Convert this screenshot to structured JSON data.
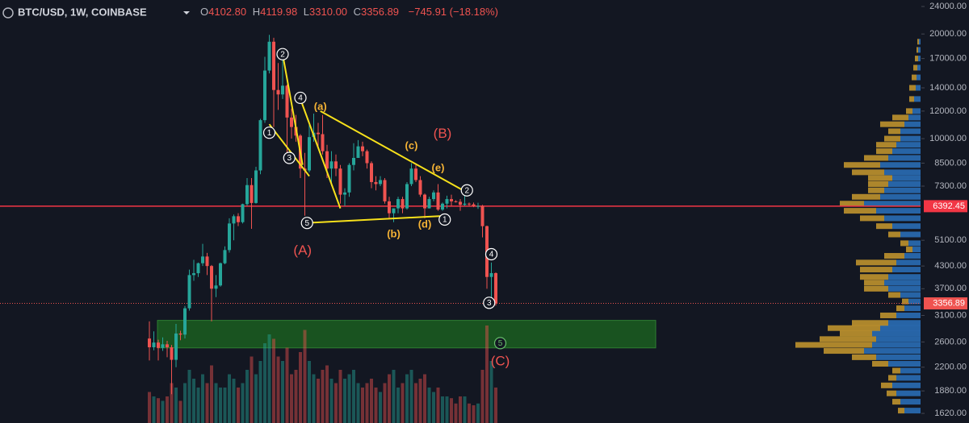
{
  "chart_data": {
    "type": "candlestick",
    "title": "BTC/USD, 1W, COINBASE",
    "ohlc": [
      {
        "label": "O",
        "value": "4102.80"
      },
      {
        "label": "H",
        "value": "4119.98"
      },
      {
        "label": "L",
        "value": "3310.00"
      },
      {
        "label": "C",
        "value": "3356.89"
      }
    ],
    "change": "−745.91 (−18.18%)",
    "log_scale": true,
    "grid": false,
    "up_color": "#26a69a",
    "down_color": "#ef5350",
    "ylim": [
      1520,
      25050
    ],
    "yticks": [
      {
        "value": 1620,
        "label": "1620.00"
      },
      {
        "value": 1880,
        "label": "1880.00"
      },
      {
        "value": 2200,
        "label": "2200.00"
      },
      {
        "value": 2600,
        "label": "2600.00"
      },
      {
        "value": 3100,
        "label": "3100.00"
      },
      {
        "value": 3700,
        "label": "3700.00"
      },
      {
        "value": 4300,
        "label": "4300.00"
      },
      {
        "value": 5100,
        "label": "5100.00"
      },
      {
        "value": 7300,
        "label": "7300.00"
      },
      {
        "value": 8500,
        "label": "8500.00"
      },
      {
        "value": 10000,
        "label": "10000.00"
      },
      {
        "value": 12000,
        "label": "12000.00"
      },
      {
        "value": 14000,
        "label": "14000.00"
      },
      {
        "value": 17000,
        "label": "17000.00"
      },
      {
        "value": 20000,
        "label": "20000.00"
      },
      {
        "value": 24000,
        "label": "24000.00"
      }
    ],
    "open": [
      2660,
      2510,
      2590,
      2500,
      2560,
      2510,
      2310,
      2750,
      2730,
      3250,
      4050,
      4100,
      4380,
      4580,
      4300,
      3700,
      3780,
      4380,
      4780,
      5700,
      5980,
      5750,
      6480,
      7350,
      6530,
      8100,
      11300,
      15700,
      19000,
      13800,
      13400,
      14200,
      11500,
      10800,
      10200,
      8200,
      8100,
      10100,
      10400,
      10300,
      9200,
      8200,
      8600,
      8200,
      6900,
      7000,
      8400,
      8800,
      9500,
      9200,
      8500,
      7500,
      7400,
      7600,
      6600,
      6100,
      6300,
      6700,
      6300,
      7400,
      8200,
      7600,
      6900,
      6300,
      6700,
      7000,
      6250,
      6500,
      6700,
      6600,
      6580,
      6450,
      6500,
      6470,
      6390,
      6400,
      5600,
      4000,
      4102.8
    ],
    "high": [
      2980,
      2790,
      2640,
      2680,
      2620,
      2550,
      2930,
      2800,
      3300,
      4200,
      4480,
      4400,
      4980,
      4690,
      4330,
      4050,
      4400,
      4900,
      5900,
      6050,
      6100,
      6500,
      7700,
      7700,
      8300,
      11400,
      17200,
      19890,
      19500,
      16500,
      17200,
      14300,
      12200,
      11700,
      10300,
      9100,
      11000,
      11800,
      11100,
      11700,
      9600,
      9200,
      9000,
      8400,
      7200,
      8500,
      9700,
      9900,
      9800,
      9300,
      8600,
      7800,
      7800,
      7700,
      6800,
      6300,
      6800,
      6800,
      7500,
      8500,
      8400,
      7800,
      6950,
      6800,
      7100,
      7400,
      6550,
      6850,
      6900,
      6650,
      6700,
      7000,
      6550,
      6550,
      6540,
      6450,
      5620,
      4400,
      4119.98
    ],
    "low": [
      2300,
      2460,
      2300,
      2450,
      2350,
      1840,
      2200,
      2630,
      2660,
      3200,
      3900,
      4000,
      4300,
      4050,
      2980,
      3500,
      3750,
      4350,
      4700,
      5100,
      5600,
      5700,
      6400,
      5500,
      6500,
      7900,
      11100,
      15400,
      10800,
      12100,
      13000,
      9000,
      10000,
      9800,
      7700,
      6000,
      8000,
      9800,
      9400,
      9000,
      7700,
      7300,
      7800,
      6500,
      6400,
      6800,
      8100,
      8800,
      8900,
      8200,
      7200,
      7100,
      7300,
      6500,
      5900,
      5750,
      6100,
      6100,
      6250,
      7300,
      7500,
      6800,
      5900,
      6300,
      6600,
      6200,
      6200,
      6300,
      6400,
      6550,
      6200,
      6400,
      6380,
      6350,
      6280,
      5200,
      3700,
      3500,
      3310
    ],
    "close": [
      2510,
      2590,
      2500,
      2560,
      2510,
      2310,
      2750,
      2730,
      3250,
      4050,
      4100,
      4380,
      4580,
      4300,
      3700,
      3780,
      4380,
      4780,
      5700,
      5980,
      5750,
      6480,
      7350,
      6530,
      8100,
      11300,
      15700,
      19000,
      13800,
      13400,
      14200,
      11500,
      10800,
      10200,
      8200,
      8100,
      10100,
      10400,
      10300,
      9200,
      8200,
      8600,
      8200,
      6900,
      7000,
      8400,
      8800,
      9500,
      9200,
      8500,
      7500,
      7400,
      7600,
      6600,
      6100,
      6300,
      6700,
      6300,
      7400,
      8200,
      7600,
      6900,
      6300,
      6700,
      7000,
      6250,
      6500,
      6700,
      6600,
      6580,
      6450,
      6500,
      6470,
      6390,
      6400,
      5600,
      4000,
      4102.8,
      3356.89
    ],
    "volume": [
      35,
      30,
      28,
      25,
      30,
      45,
      40,
      25,
      45,
      60,
      50,
      40,
      55,
      45,
      65,
      45,
      40,
      40,
      55,
      50,
      40,
      45,
      60,
      75,
      55,
      70,
      90,
      100,
      95,
      75,
      70,
      85,
      55,
      60,
      80,
      105,
      70,
      55,
      50,
      60,
      65,
      50,
      45,
      60,
      50,
      55,
      60,
      45,
      40,
      45,
      50,
      40,
      35,
      45,
      55,
      60,
      40,
      45,
      55,
      60,
      45,
      50,
      55,
      40,
      35,
      40,
      30,
      30,
      28,
      22,
      30,
      30,
      22,
      20,
      22,
      60,
      110,
      70,
      40
    ],
    "price_line": {
      "value": 6392.45,
      "color": "#f23645"
    },
    "zone": {
      "low": 2500,
      "high": 3000,
      "color": "#1b5e20"
    },
    "volume_profile": {
      "prices": [
        1650,
        1750,
        1850,
        1950,
        2050,
        2150,
        2250,
        2350,
        2450,
        2550,
        2650,
        2750,
        2850,
        2950,
        3100,
        3250,
        3400,
        3550,
        3700,
        3850,
        4000,
        4200,
        4400,
        4600,
        4800,
        5000,
        5300,
        5600,
        5900,
        6200,
        6500,
        6800,
        7100,
        7400,
        7700,
        8000,
        8400,
        8800,
        9200,
        9600,
        10000,
        10500,
        11000,
        11500,
        12000,
        13000,
        14000,
        15000,
        16000,
        17000,
        18000,
        19000
      ],
      "up": [
        20,
        25,
        30,
        35,
        30,
        25,
        40,
        55,
        70,
        60,
        55,
        60,
        50,
        40,
        30,
        20,
        15,
        25,
        40,
        45,
        40,
        35,
        30,
        20,
        10,
        15,
        25,
        35,
        45,
        55,
        70,
        50,
        45,
        40,
        35,
        45,
        50,
        40,
        35,
        30,
        25,
        25,
        20,
        15,
        10,
        8,
        6,
        5,
        4,
        3,
        3,
        2
      ],
      "down": [
        8,
        10,
        12,
        14,
        10,
        10,
        20,
        30,
        50,
        95,
        70,
        40,
        65,
        45,
        20,
        10,
        8,
        15,
        30,
        25,
        35,
        40,
        50,
        25,
        8,
        10,
        15,
        20,
        30,
        40,
        30,
        35,
        20,
        25,
        30,
        40,
        45,
        30,
        20,
        25,
        20,
        15,
        30,
        20,
        8,
        6,
        8,
        6,
        5,
        4,
        2,
        2
      ],
      "up_color": "#2a6db5",
      "down_color": "#c99a2e"
    },
    "annotations": [
      {
        "text": "2",
        "style": "circle",
        "color": "#ffffff"
      },
      {
        "text": "4",
        "style": "circle",
        "color": "#ffffff"
      },
      {
        "text": "(a)",
        "style": "text",
        "color": "#f5b335"
      },
      {
        "text": "1",
        "style": "circle",
        "color": "#ffffff"
      },
      {
        "text": "3",
        "style": "circle",
        "color": "#ffffff"
      },
      {
        "text": "5",
        "style": "circle",
        "color": "#ffffff"
      },
      {
        "text": "(A)",
        "style": "text",
        "color": "#ef5350"
      },
      {
        "text": "(c)",
        "style": "text",
        "color": "#f5b335"
      },
      {
        "text": "(B)",
        "style": "text",
        "color": "#ef5350"
      },
      {
        "text": "(e)",
        "style": "text",
        "color": "#f5b335"
      },
      {
        "text": "2",
        "style": "circle",
        "color": "#ffffff"
      },
      {
        "text": "1",
        "style": "circle",
        "color": "#ffffff"
      },
      {
        "text": "(b)",
        "style": "text",
        "color": "#f5b335"
      },
      {
        "text": "(d)",
        "style": "text",
        "color": "#f5b335"
      },
      {
        "text": "4",
        "style": "circle",
        "color": "#ffffff"
      },
      {
        "text": "3",
        "style": "circle",
        "color": "#ffffff"
      },
      {
        "text": "5",
        "style": "circle",
        "color": "#66bb6a"
      },
      {
        "text": "(C)",
        "style": "text",
        "color": "#ef5350"
      }
    ]
  }
}
